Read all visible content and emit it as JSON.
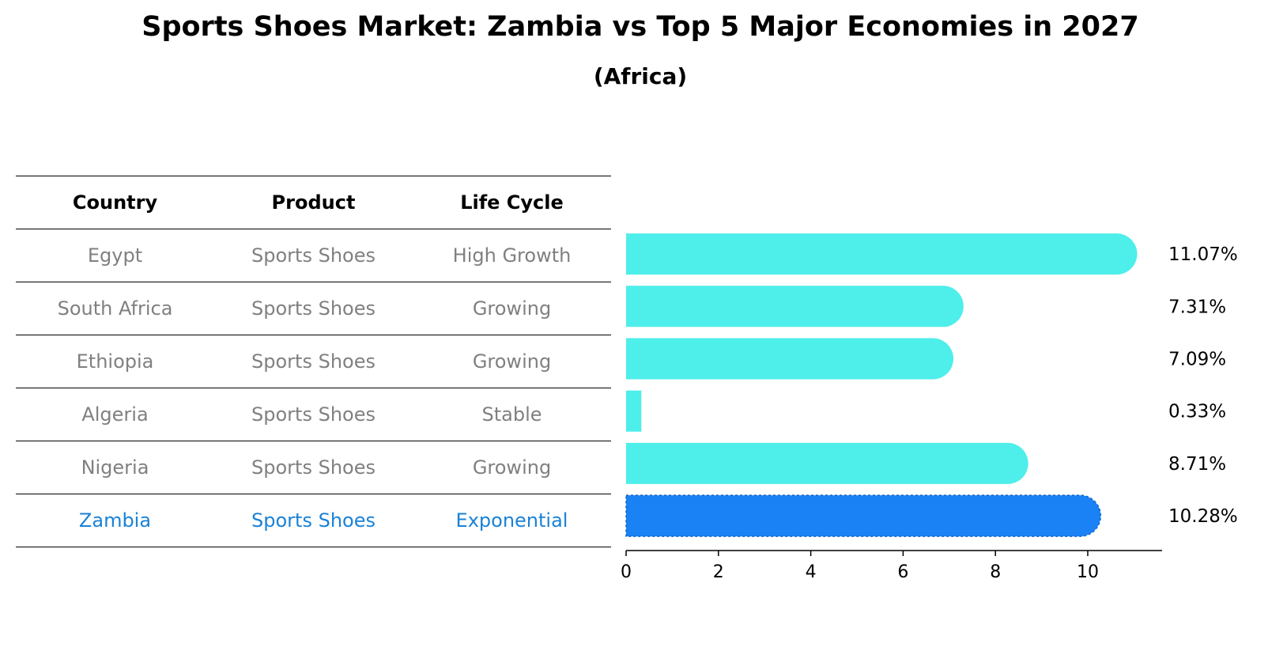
{
  "title": "Sports Shoes Market: Zambia vs Top 5 Major Economies in 2027",
  "subtitle": "(Africa)",
  "table": {
    "headers": [
      "Country",
      "Product",
      "Life Cycle"
    ],
    "rows": [
      {
        "country": "Egypt",
        "product": "Sports Shoes",
        "life_cycle": "High Growth"
      },
      {
        "country": "South Africa",
        "product": "Sports Shoes",
        "life_cycle": "Growing"
      },
      {
        "country": "Ethiopia",
        "product": "Sports Shoes",
        "life_cycle": "Growing"
      },
      {
        "country": "Algeria",
        "product": "Sports Shoes",
        "life_cycle": "Stable"
      },
      {
        "country": "Nigeria",
        "product": "Sports Shoes",
        "life_cycle": "Growing"
      },
      {
        "country": "Zambia",
        "product": "Sports Shoes",
        "life_cycle": "Exponential"
      }
    ]
  },
  "colors": {
    "bar": "#4eeeea",
    "highlight_bar": "#1a82f5",
    "highlight_text": "#1a82d6",
    "muted_text": "#808080"
  },
  "chart_data": {
    "type": "bar",
    "orientation": "horizontal",
    "categories": [
      "Egypt",
      "South Africa",
      "Ethiopia",
      "Algeria",
      "Nigeria",
      "Zambia"
    ],
    "values": [
      11.07,
      7.31,
      7.09,
      0.33,
      8.71,
      10.28
    ],
    "value_labels": [
      "11.07%",
      "7.31%",
      "7.09%",
      "0.33%",
      "8.71%",
      "10.28%"
    ],
    "highlight": "Zambia",
    "xlim": [
      0,
      11.6
    ],
    "xticks": [
      0,
      2,
      4,
      6,
      8,
      10
    ],
    "grid": false
  }
}
